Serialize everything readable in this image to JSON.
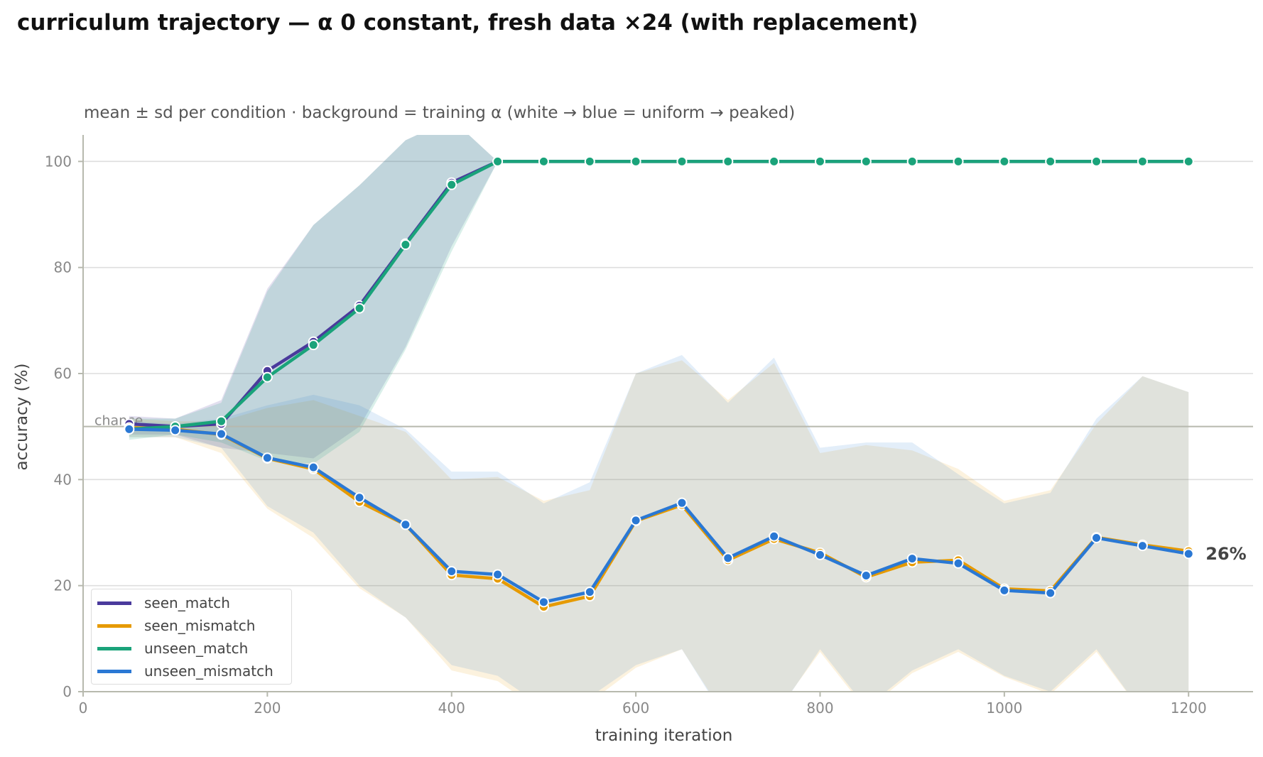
{
  "title": "curriculum trajectory — α 0 constant, fresh data ×24 (with replacement)",
  "subtitle": "mean ± sd per condition · background = training α (white → blue = uniform → peaked)",
  "chart_data": {
    "type": "line",
    "xlabel": "training iteration",
    "ylabel": "accuracy (%)",
    "xlim": [
      0,
      1270
    ],
    "ylim": [
      0,
      105
    ],
    "xticks": [
      0,
      200,
      400,
      600,
      800,
      1000,
      1200
    ],
    "yticks": [
      0,
      20,
      40,
      60,
      80,
      100
    ],
    "grid": "horizontal",
    "legend_position": "lower-left",
    "reference_line": {
      "y": 50,
      "label": "chance"
    },
    "end_annotation": {
      "series": "unseen_mismatch",
      "text": "26%"
    },
    "x": [
      50,
      100,
      150,
      200,
      250,
      300,
      350,
      400,
      450,
      500,
      550,
      600,
      650,
      700,
      750,
      800,
      850,
      900,
      950,
      1000,
      1050,
      1100,
      1150,
      1200
    ],
    "series": [
      {
        "name": "seen_match",
        "color": "#4a3a9c",
        "values": [
          50.5,
          50.0,
          50.5,
          60.5,
          66.0,
          72.8,
          84.5,
          96.0,
          100,
          100,
          100,
          100,
          100,
          100,
          100,
          100,
          100,
          100,
          100,
          100,
          100,
          100,
          100,
          100
        ],
        "upper": [
          52.0,
          51.5,
          55.0,
          76.0,
          88.0,
          95.5,
          104.0,
          108.0,
          100,
          100,
          100,
          100,
          100,
          100,
          100,
          100,
          100,
          100,
          100,
          100,
          100,
          100,
          100,
          100
        ],
        "lower": [
          48.5,
          48.5,
          46.0,
          45.0,
          44.0,
          50.0,
          65.0,
          84.0,
          100,
          100,
          100,
          100,
          100,
          100,
          100,
          100,
          100,
          100,
          100,
          100,
          100,
          100,
          100,
          100
        ]
      },
      {
        "name": "seen_mismatch",
        "color": "#e69a00",
        "values": [
          49.8,
          49.5,
          48.5,
          44.0,
          42.0,
          35.8,
          31.5,
          22.0,
          21.3,
          16.0,
          18.0,
          32.2,
          35.2,
          24.8,
          28.8,
          26.2,
          21.6,
          24.4,
          24.8,
          19.4,
          19.0,
          29.1,
          27.7,
          26.5
        ],
        "upper": [
          51.5,
          51.0,
          51.0,
          53.5,
          55.0,
          52.0,
          49.0,
          40.0,
          40.5,
          36.0,
          38.0,
          60.0,
          62.5,
          55.0,
          62.0,
          45.0,
          46.5,
          45.5,
          42.0,
          36.0,
          38.0,
          50.5,
          59.5,
          56.5
        ],
        "lower": [
          48.0,
          48.0,
          45.0,
          34.5,
          29.0,
          19.5,
          14.0,
          4.0,
          2.0,
          -4.0,
          -2.0,
          4.5,
          8.0,
          -5.5,
          -4.5,
          7.5,
          -3.5,
          3.5,
          7.5,
          2.8,
          -0.5,
          7.5,
          -4.0,
          -3.5
        ]
      },
      {
        "name": "unseen_match",
        "color": "#1aa37a",
        "values": [
          49.5,
          50.0,
          51.0,
          59.3,
          65.4,
          72.3,
          84.3,
          95.6,
          100,
          100,
          100,
          100,
          100,
          100,
          100,
          100,
          100,
          100,
          100,
          100,
          100,
          100,
          100,
          100
        ],
        "upper": [
          51.5,
          51.5,
          54.5,
          75.5,
          88.0,
          95.5,
          104.0,
          108.0,
          100,
          100,
          100,
          100,
          100,
          100,
          100,
          100,
          100,
          100,
          100,
          100,
          100,
          100,
          100,
          100
        ],
        "lower": [
          47.5,
          48.5,
          47.0,
          43.5,
          43.0,
          49.0,
          64.5,
          83.0,
          100,
          100,
          100,
          100,
          100,
          100,
          100,
          100,
          100,
          100,
          100,
          100,
          100,
          100,
          100,
          100
        ]
      },
      {
        "name": "unseen_mismatch",
        "color": "#2a78d4",
        "values": [
          49.5,
          49.3,
          48.6,
          44.1,
          42.3,
          36.6,
          31.5,
          22.7,
          22.1,
          16.9,
          18.8,
          32.3,
          35.6,
          25.2,
          29.3,
          25.8,
          21.9,
          25.1,
          24.2,
          19.1,
          18.6,
          29.0,
          27.5,
          26.0
        ],
        "upper": [
          51.0,
          50.5,
          51.5,
          54.0,
          56.0,
          54.0,
          49.5,
          41.5,
          41.5,
          35.5,
          39.5,
          60.0,
          63.5,
          54.5,
          63.0,
          46.0,
          47.0,
          47.0,
          41.0,
          35.5,
          37.5,
          51.5,
          59.5,
          56.5
        ],
        "lower": [
          48.0,
          48.0,
          46.0,
          35.0,
          30.0,
          20.0,
          14.0,
          5.0,
          3.0,
          -3.0,
          -1.0,
          5.0,
          8.0,
          -6.0,
          -5.0,
          8.0,
          -3.0,
          4.0,
          8.0,
          3.0,
          0.0,
          8.0,
          -4.0,
          -3.0
        ]
      }
    ]
  }
}
